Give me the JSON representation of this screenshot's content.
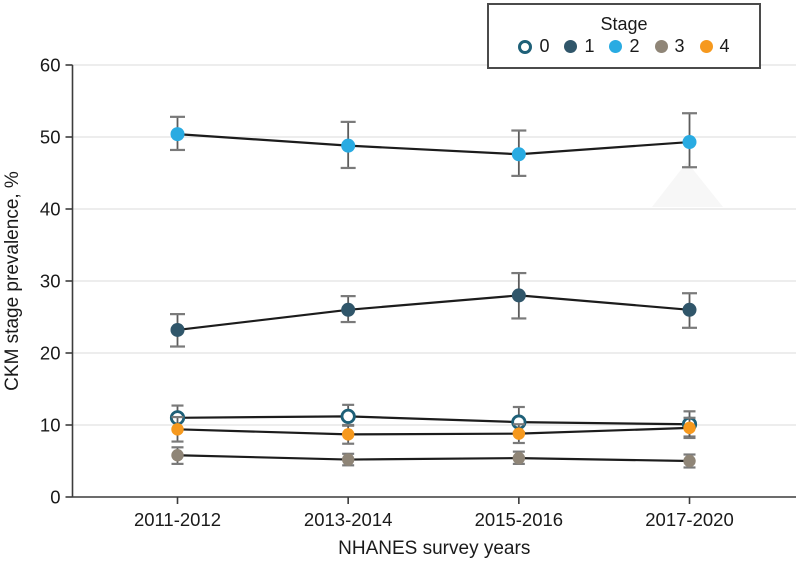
{
  "legend": {
    "title": "Stage",
    "items": [
      {
        "label": "0",
        "marker": "open-circle"
      },
      {
        "label": "1",
        "marker": "filled-circle"
      },
      {
        "label": "2",
        "marker": "filled-circle"
      },
      {
        "label": "3",
        "marker": "filled-circle"
      },
      {
        "label": "4",
        "marker": "filled-circle"
      }
    ]
  },
  "chart_data": {
    "type": "line",
    "title": "",
    "xlabel": "NHANES survey years",
    "ylabel": "CKM stage prevalence, %",
    "categories": [
      "2011-2012",
      "2013-2014",
      "2015-2016",
      "2017-2020"
    ],
    "ylim": [
      0,
      60
    ],
    "yticks": [
      0,
      10,
      20,
      30,
      40,
      50,
      60
    ],
    "grid": true,
    "legend_position": "top-right",
    "line_color": "#1c1c1c",
    "error_bar_color": "#5c5c5c",
    "error_cap_color": "#7a7a7a",
    "axis_color": "#3c3c3c",
    "gridline_color": "#e7e7e7",
    "series": [
      {
        "name": "0",
        "marker": "open-circle",
        "color": "#1e6078",
        "values": [
          11.0,
          11.2,
          10.4,
          10.1
        ],
        "ci_low": [
          9.4,
          9.9,
          9.0,
          8.4
        ],
        "ci_high": [
          12.7,
          12.8,
          12.5,
          11.9
        ]
      },
      {
        "name": "1",
        "marker": "filled-circle",
        "color": "#30566a",
        "values": [
          23.2,
          26.0,
          28.0,
          26.0
        ],
        "ci_low": [
          20.9,
          24.3,
          24.8,
          23.5
        ],
        "ci_high": [
          25.4,
          27.9,
          31.1,
          28.3
        ]
      },
      {
        "name": "2",
        "marker": "filled-circle",
        "color": "#29abe2",
        "values": [
          50.4,
          48.8,
          47.6,
          49.3
        ],
        "ci_low": [
          48.2,
          45.7,
          44.6,
          45.8
        ],
        "ci_high": [
          52.8,
          52.1,
          50.9,
          53.3
        ]
      },
      {
        "name": "3",
        "marker": "filled-circle",
        "color": "#8f8577",
        "values": [
          5.8,
          5.2,
          5.4,
          5.0
        ],
        "ci_low": [
          4.6,
          4.4,
          4.6,
          4.1
        ],
        "ci_high": [
          6.9,
          6.0,
          6.3,
          5.9
        ]
      },
      {
        "name": "4",
        "marker": "filled-circle",
        "color": "#f6991e",
        "values": [
          9.4,
          8.7,
          8.8,
          9.6
        ],
        "ci_low": [
          7.7,
          7.4,
          7.5,
          8.2
        ],
        "ci_high": [
          11.1,
          10.0,
          10.1,
          11.0
        ]
      }
    ]
  }
}
